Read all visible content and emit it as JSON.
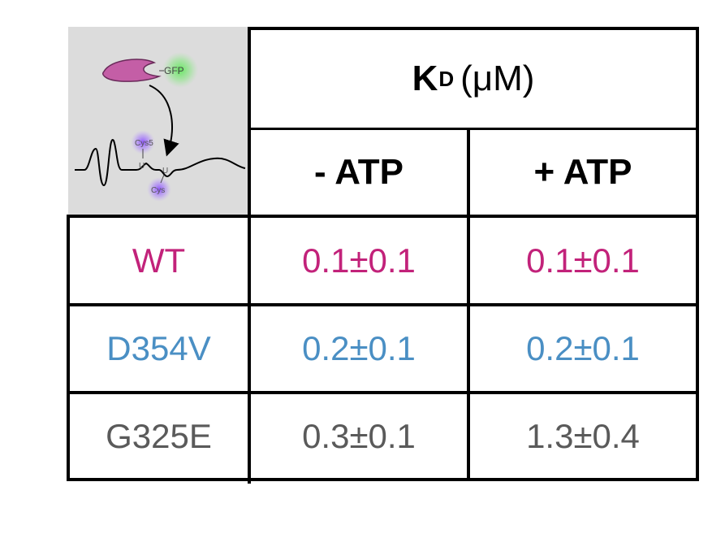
{
  "schematic": {
    "protein_label": "GFP",
    "fluor_top": "Cys5",
    "fluor_bottom": "Cys",
    "uridine_left": "U",
    "uridine_right": "U"
  },
  "chart_data": {
    "type": "table",
    "title_symbol": "K",
    "title_subscript": "D",
    "title_unit": "(μM)",
    "columns": [
      "- ATP",
      "+ ATP"
    ],
    "rows": [
      {
        "label": "WT",
        "minus_atp": "0.1±0.1",
        "plus_atp": "0.1±0.1",
        "color": "#c2227a"
      },
      {
        "label": "D354V",
        "minus_atp": "0.2±0.1",
        "plus_atp": "0.2±0.1",
        "color": "#4a8fc4"
      },
      {
        "label": "G325E",
        "minus_atp": "0.3±0.1",
        "plus_atp": "1.3±0.4",
        "color": "#5a5a5a"
      }
    ]
  }
}
